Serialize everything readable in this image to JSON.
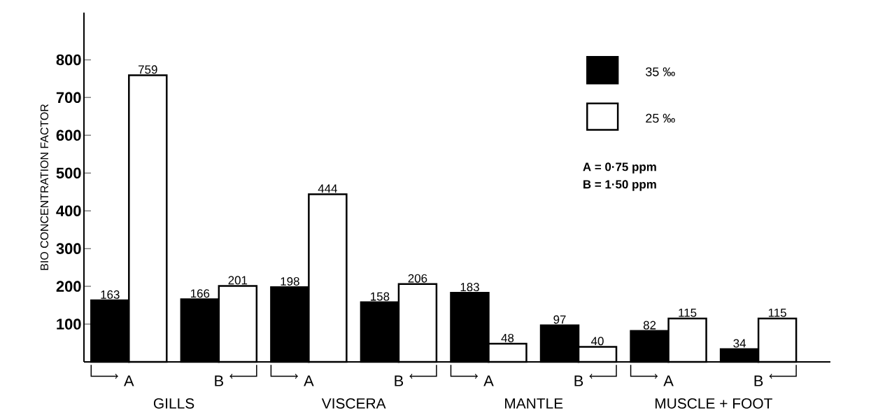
{
  "chart_data": {
    "type": "bar",
    "ylabel": "BIO CONCENTRATION FACTOR",
    "categories": [
      "A",
      "B",
      "A",
      "B",
      "A",
      "B",
      "A",
      "B"
    ],
    "series": [
      {
        "name": "35 ‰",
        "color": "#000000",
        "values": [
          163,
          166,
          198,
          158,
          183,
          97,
          82,
          34
        ]
      },
      {
        "name": "25 ‰",
        "color": "#ffffff",
        "values": [
          759,
          201,
          444,
          206,
          48,
          40,
          115,
          115
        ]
      }
    ],
    "ylim": [
      0,
      925
    ],
    "yticks": [
      100,
      200,
      300,
      400,
      500,
      600,
      700,
      800
    ],
    "data_labels": true,
    "legend": "top right",
    "grid": false,
    "annotations": [
      "GILLS",
      "VISCERA",
      "MANTLE",
      "MUSCLE + FOOT",
      "A = 0·75 ppm",
      "B = 1·50 ppm"
    ]
  }
}
